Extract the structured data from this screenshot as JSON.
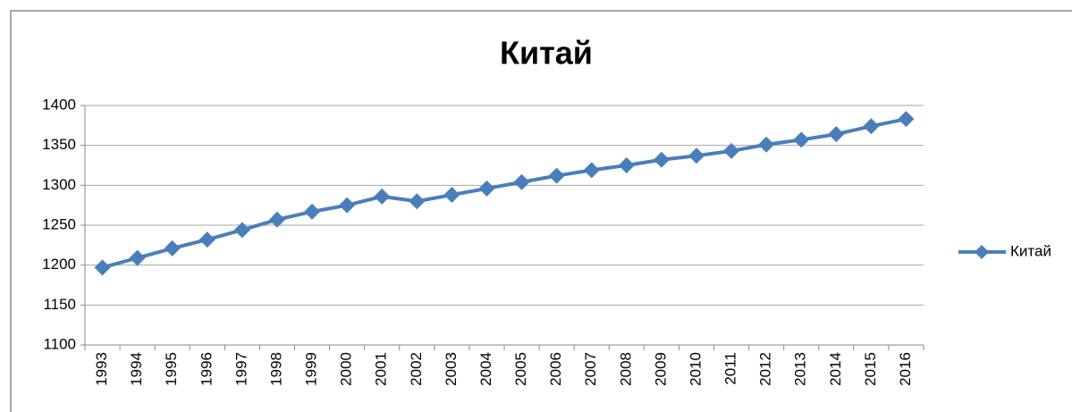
{
  "chart_data": {
    "type": "line",
    "title": "Китай",
    "categories": [
      "1993",
      "1994",
      "1995",
      "1996",
      "1997",
      "1998",
      "1999",
      "2000",
      "2001",
      "2002",
      "2003",
      "2004",
      "2005",
      "2006",
      "2007",
      "2008",
      "2009",
      "2010",
      "2011",
      "2012",
      "2013",
      "2014",
      "2015",
      "2016"
    ],
    "series": [
      {
        "name": "Китай",
        "color": "#4a7ebb",
        "values": [
          1197,
          1209,
          1221,
          1232,
          1244,
          1257,
          1267,
          1275,
          1286,
          1280,
          1288,
          1296,
          1304,
          1312,
          1319,
          1325,
          1332,
          1337,
          1343,
          1351,
          1357,
          1364,
          1374,
          1383
        ]
      }
    ],
    "ylim": [
      1100,
      1400
    ],
    "yticks": [
      1100,
      1150,
      1200,
      1250,
      1300,
      1350,
      1400
    ],
    "grid": true,
    "legend": "right"
  }
}
